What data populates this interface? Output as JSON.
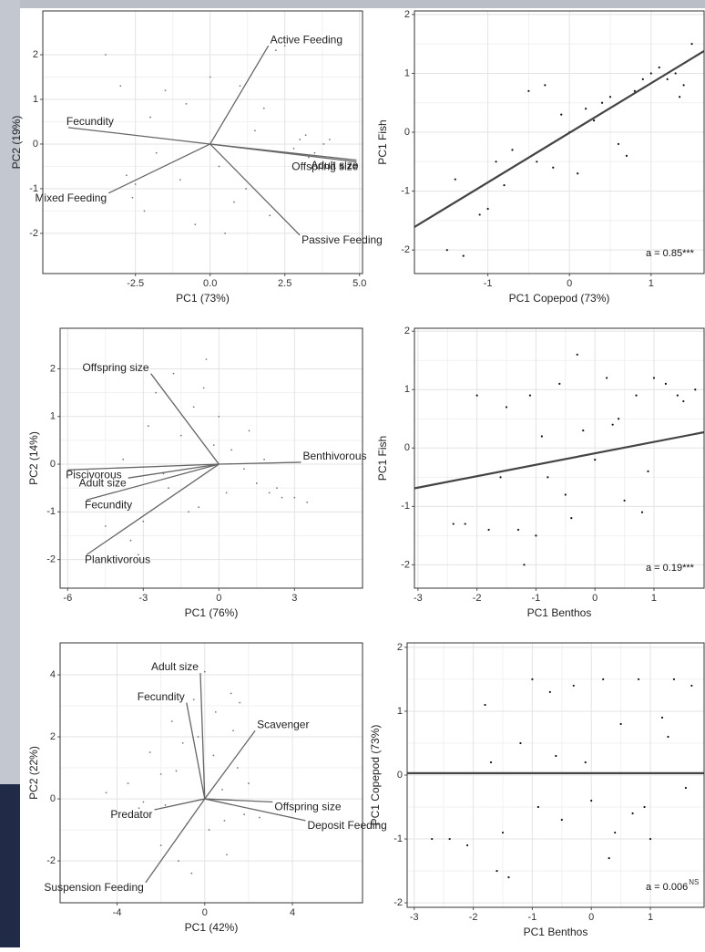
{
  "chart_data": [
    {
      "type": "biplot",
      "xlabel": "PC1 (73%)",
      "ylabel": "PC2 (19%)",
      "xlim": [
        -5.6,
        5.1
      ],
      "ylim": [
        -2.9,
        2.98
      ],
      "xticks": [
        -2.5,
        {
          "value": 0,
          "label": "0.0"
        },
        2.5,
        {
          "value": 5,
          "label": "5.0"
        }
      ],
      "yticks": [
        -2,
        -1,
        0,
        1,
        2
      ],
      "grid": true,
      "color": "#777777",
      "points": {
        "x": [
          -3.5,
          -3,
          -2.8,
          -2.5,
          -2.2,
          -2,
          -1.5,
          -1,
          -0.8,
          -0.5,
          0,
          0.3,
          0.5,
          1,
          1.2,
          1.5,
          2,
          2.2,
          2.5,
          2.8,
          3,
          3.2,
          3.5,
          3.8,
          4,
          -1.8,
          -2.6,
          0.8,
          1.8,
          3.3
        ],
        "y": [
          2.0,
          1.3,
          -0.7,
          -0.9,
          -1.5,
          0.6,
          1.2,
          -0.8,
          0.9,
          -1.8,
          1.5,
          -0.5,
          -2.0,
          1.3,
          -1.0,
          0.3,
          -1.6,
          2.1,
          2.2,
          -0.1,
          0.1,
          0.2,
          -0.2,
          0.0,
          0.1,
          -0.2,
          -1.2,
          -1.3,
          0.8,
          -0.3
        ]
      },
      "loadings": [
        {
          "label": "Active Feeding",
          "x": 1.95,
          "y": 2.2
        },
        {
          "label": "Fecundity",
          "x": -4.75,
          "y": 0.37
        },
        {
          "label": "Offspring size",
          "x": 4.9,
          "y": -0.4
        },
        {
          "label": "Adult size",
          "x": 4.9,
          "y": -0.36
        },
        {
          "label": "Mixed Feeding",
          "x": -3.4,
          "y": -1.1
        },
        {
          "label": "Passive Feeding",
          "x": 3.0,
          "y": -2.04
        }
      ]
    },
    {
      "type": "scatter",
      "xlabel": "PC1 Copepod (73%)",
      "ylabel": "PC1 Fish",
      "xlim": [
        -1.9,
        1.65
      ],
      "ylim": [
        -2.4,
        2.06
      ],
      "xticks": [
        -1,
        0,
        1
      ],
      "yticks": [
        -2,
        -1,
        0,
        1,
        2
      ],
      "grid": true,
      "color": "#111111",
      "line_color": "#444444",
      "points": {
        "x": [
          -1.5,
          -1.4,
          -1.3,
          -1.1,
          -1.0,
          -0.9,
          -0.7,
          -0.5,
          -0.4,
          -0.3,
          -0.2,
          0,
          0.1,
          0.2,
          0.3,
          0.5,
          0.6,
          0.8,
          0.9,
          1.0,
          1.1,
          1.2,
          1.3,
          1.4,
          1.5,
          -0.8,
          -0.1,
          0.4,
          0.7,
          1.35
        ],
        "y": [
          -2.0,
          -0.8,
          -2.1,
          -1.4,
          -1.3,
          -0.5,
          -0.3,
          0.7,
          -0.5,
          0.8,
          -0.6,
          0,
          -0.7,
          0.4,
          0.2,
          0.6,
          -0.2,
          0.7,
          0.9,
          1.0,
          1.1,
          0.9,
          1.0,
          0.8,
          1.5,
          -0.9,
          0.3,
          0.5,
          -0.4,
          0.6
        ]
      },
      "fit": {
        "x": [
          -1.9,
          1.65
        ],
        "y": [
          -1.61,
          1.38
        ]
      },
      "annotation": "a = 0.85***"
    },
    {
      "type": "biplot",
      "xlabel": "PC1 (76%)",
      "ylabel": "PC2 (14%)",
      "xlim": [
        -6.3,
        5.7
      ],
      "ylim": [
        -2.6,
        2.85
      ],
      "xticks": [
        -6,
        -3,
        0,
        3
      ],
      "yticks": [
        -2,
        -1,
        0,
        1,
        2
      ],
      "grid": true,
      "color": "#777777",
      "points": {
        "x": [
          -4.5,
          -4,
          -3.8,
          -3.5,
          -3.2,
          -3,
          -2.8,
          -2.5,
          -2,
          -1.8,
          -1.5,
          -1,
          -0.8,
          -0.5,
          -0.2,
          0,
          0.5,
          1,
          1.2,
          1.5,
          2,
          2.3,
          2.5,
          3,
          3.5,
          -1.2,
          -2.2,
          0.3,
          -0.6,
          1.8
        ],
        "y": [
          -1.3,
          -0.8,
          0.1,
          -1.6,
          -1.9,
          -1.2,
          0.8,
          1.5,
          -0.5,
          1.9,
          0.6,
          1.2,
          -0.9,
          2.2,
          0.4,
          1.0,
          0.3,
          -0.1,
          0.7,
          -0.4,
          -0.6,
          -0.5,
          -0.7,
          -0.7,
          -0.8,
          -1.0,
          -0.2,
          -0.6,
          1.6,
          0.1
        ]
      },
      "loadings": [
        {
          "label": "Offspring size",
          "x": -2.7,
          "y": 1.9
        },
        {
          "label": "Benthivorous",
          "x": 3.26,
          "y": 0.04
        },
        {
          "label": "Piscivorous",
          "x": -6.0,
          "y": -0.12
        },
        {
          "label": "Adult size",
          "x": -3.6,
          "y": -0.29
        },
        {
          "label": "Fecundity",
          "x": -5.25,
          "y": -0.75
        },
        {
          "label": "Planktivorous",
          "x": -5.25,
          "y": -1.9
        }
      ]
    },
    {
      "type": "scatter",
      "xlabel": "PC1 Benthos",
      "ylabel": "PC1 Fish",
      "xlim": [
        -3.06,
        1.85
      ],
      "ylim": [
        -2.4,
        2.05
      ],
      "xticks": [
        -3,
        -2,
        -1,
        0,
        1
      ],
      "yticks": [
        -2,
        -1,
        0,
        1,
        2
      ],
      "grid": true,
      "color": "#111111",
      "line_color": "#444444",
      "points": {
        "x": [
          -2.4,
          -2.2,
          -2,
          -1.8,
          -1.5,
          -1.3,
          -1.2,
          -1.1,
          -1,
          -0.9,
          -0.8,
          -0.6,
          -0.5,
          -0.3,
          -0.2,
          0,
          0.2,
          0.4,
          0.5,
          0.7,
          0.8,
          1,
          1.2,
          1.4,
          1.7,
          -1.6,
          -0.4,
          0.3,
          0.9,
          1.5
        ],
        "y": [
          -1.3,
          -1.3,
          0.9,
          -1.4,
          0.7,
          -1.4,
          -2.0,
          0.9,
          -1.5,
          0.2,
          -0.5,
          1.1,
          -0.8,
          1.6,
          0.3,
          -0.2,
          1.2,
          0.5,
          -0.9,
          0.9,
          -1.1,
          1.2,
          1.1,
          0.9,
          1.0,
          -0.5,
          -1.2,
          0.4,
          -0.4,
          0.8
        ]
      },
      "fit": {
        "x": [
          -3.06,
          1.85
        ],
        "y": [
          -0.69,
          0.27
        ]
      },
      "annotation": "a = 0.19***"
    },
    {
      "type": "biplot",
      "xlabel": "PC1 (42%)",
      "ylabel": "PC2 (22%)",
      "xlim": [
        -6.6,
        7.2
      ],
      "ylim": [
        -3.35,
        5.03
      ],
      "xticks": [
        -4,
        0,
        4
      ],
      "yticks": [
        -2,
        0,
        2,
        4
      ],
      "grid": true,
      "color": "#777777",
      "points": {
        "x": [
          -4.5,
          -3.5,
          -3,
          -2.5,
          -2,
          -2,
          -1.5,
          -1.2,
          -1,
          -0.8,
          -0.5,
          -0.3,
          0,
          0.2,
          0.5,
          0.8,
          1,
          1.2,
          1.5,
          1.8,
          2,
          2.5,
          -1.8,
          -0.6,
          0.4,
          1.3,
          -2.8,
          0.9,
          -1.3,
          1.6
        ],
        "y": [
          0.2,
          0.5,
          -0.3,
          1.5,
          -1.5,
          0.8,
          2.5,
          -2.0,
          1.8,
          -0.8,
          3.2,
          2.0,
          4.1,
          -1.0,
          2.8,
          0.3,
          -1.8,
          3.4,
          1.0,
          -0.5,
          0.5,
          -0.6,
          -0.2,
          -2.4,
          1.4,
          2.2,
          -0.1,
          -0.7,
          0.9,
          3.1
        ]
      },
      "loadings": [
        {
          "label": "Adult size",
          "x": -0.2,
          "y": 4.06
        },
        {
          "label": "Fecundity",
          "x": -0.83,
          "y": 3.1
        },
        {
          "label": "Scavenger",
          "x": 2.3,
          "y": 2.2
        },
        {
          "label": "Offspring size",
          "x": 3.1,
          "y": -0.1
        },
        {
          "label": "Deposit Feeding",
          "x": 4.6,
          "y": -0.7
        },
        {
          "label": "Predator",
          "x": -2.3,
          "y": -0.35
        },
        {
          "label": "Suspension Feeding",
          "x": -2.7,
          "y": -2.7
        }
      ]
    },
    {
      "type": "scatter",
      "xlabel": "PC1 Benthos",
      "ylabel": "PC1 Copepod (73%)",
      "xlim": [
        -3.12,
        1.91
      ],
      "ylim": [
        -2.07,
        2.07
      ],
      "xticks": [
        -3,
        -2,
        -1,
        0,
        1
      ],
      "yticks": [
        -2,
        -1,
        0,
        1,
        2
      ],
      "grid": true,
      "color": "#111111",
      "line_color": "#444444",
      "points": {
        "x": [
          -2.7,
          -2.4,
          -2.1,
          -1.8,
          -1.7,
          -1.5,
          -1.4,
          -1.2,
          -1.0,
          -0.9,
          -0.7,
          -0.5,
          -0.3,
          -0.1,
          0,
          0.2,
          0.4,
          0.5,
          0.7,
          0.8,
          1.0,
          1.2,
          1.4,
          1.6,
          1.7,
          -1.6,
          -0.6,
          0.3,
          0.9,
          1.3
        ],
        "y": [
          -1.0,
          -1.0,
          -1.1,
          1.1,
          0.2,
          -0.9,
          -1.6,
          0.5,
          1.5,
          -0.5,
          1.3,
          -0.7,
          1.4,
          0.2,
          -0.4,
          1.5,
          -0.9,
          0.8,
          -0.6,
          1.5,
          -1.0,
          0.9,
          1.5,
          -0.2,
          1.4,
          -1.5,
          0.3,
          -1.3,
          -0.5,
          0.6
        ]
      },
      "fit": {
        "x": [
          -3.12,
          1.91
        ],
        "y": [
          0.03,
          0.03
        ]
      },
      "annotation": "a = 0.006",
      "annotation_sup": "NS"
    }
  ]
}
